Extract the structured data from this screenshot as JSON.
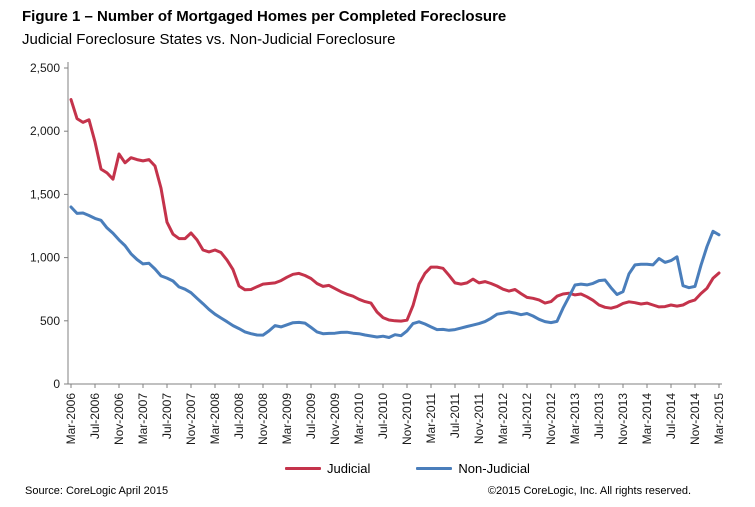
{
  "header": {
    "title": "Figure 1 – Number of Mortgaged Homes per Completed Foreclosure",
    "subtitle": "Judicial Foreclosure States vs. Non-Judicial Foreclosure"
  },
  "footer": {
    "source": "Source: CoreLogic  April 2015",
    "copyright": "©2015 CoreLogic, Inc.  All rights reserved."
  },
  "chart_data": {
    "type": "line",
    "title": "Figure 1 – Number of Mortgaged Homes per Completed Foreclosure",
    "subtitle": "Judicial Foreclosure States vs. Non-Judicial Foreclosure",
    "x_unit": "month",
    "x_start": "Mar-2006",
    "x_end": "Mar-2015",
    "x_tick_labels": [
      "Mar-2006",
      "Jul-2006",
      "Nov-2006",
      "Mar-2007",
      "Jul-2007",
      "Nov-2007",
      "Mar-2008",
      "Jul-2008",
      "Nov-2008",
      "Mar-2009",
      "Jul-2009",
      "Nov-2009",
      "Mar-2010",
      "Jul-2010",
      "Nov-2010",
      "Mar-2011",
      "Jul-2011",
      "Nov-2011",
      "Mar-2012",
      "Jul-2012",
      "Nov-2012",
      "Mar-2013",
      "Jul-2013",
      "Nov-2013",
      "Mar-2014",
      "Jul-2014",
      "Nov-2014",
      "Mar-2015"
    ],
    "ylim": [
      0,
      2500
    ],
    "y_tick_labels": [
      "0",
      "500",
      "1,000",
      "1,500",
      "2,000",
      "2,500"
    ],
    "grid": false,
    "legend_position": "bottom",
    "axis_color": "#808080",
    "text_color": "#1a1a1a",
    "series": [
      {
        "name": "Judicial",
        "color": "#C4334B",
        "values": [
          2250,
          2100,
          2070,
          2090,
          1915,
          1700,
          1670,
          1620,
          1820,
          1750,
          1790,
          1775,
          1765,
          1775,
          1725,
          1550,
          1280,
          1185,
          1150,
          1150,
          1195,
          1140,
          1060,
          1045,
          1060,
          1040,
          980,
          905,
          775,
          745,
          748,
          770,
          790,
          795,
          800,
          818,
          845,
          868,
          875,
          858,
          835,
          795,
          772,
          780,
          755,
          730,
          710,
          695,
          670,
          652,
          640,
          570,
          525,
          506,
          500,
          498,
          505,
          620,
          790,
          876,
          925,
          925,
          915,
          860,
          800,
          790,
          800,
          830,
          800,
          810,
          795,
          775,
          750,
          735,
          748,
          715,
          685,
          678,
          665,
          640,
          652,
          695,
          712,
          718,
          705,
          712,
          690,
          662,
          625,
          607,
          600,
          612,
          638,
          650,
          643,
          633,
          640,
          625,
          610,
          612,
          625,
          616,
          625,
          650,
          665,
          716,
          758,
          836,
          878
        ]
      },
      {
        "name": "Non-Judicial",
        "color": "#4A7EBB",
        "values": [
          1400,
          1350,
          1353,
          1333,
          1310,
          1295,
          1235,
          1192,
          1140,
          1095,
          1030,
          985,
          950,
          955,
          910,
          855,
          838,
          815,
          768,
          750,
          722,
          678,
          635,
          590,
          552,
          522,
          493,
          462,
          438,
          412,
          398,
          388,
          387,
          420,
          462,
          452,
          468,
          485,
          487,
          482,
          448,
          412,
          398,
          400,
          402,
          408,
          410,
          402,
          398,
          388,
          380,
          372,
          378,
          368,
          390,
          382,
          420,
          478,
          492,
          475,
          452,
          430,
          432,
          425,
          430,
          442,
          455,
          466,
          478,
          494,
          520,
          552,
          560,
          570,
          561,
          548,
          558,
          538,
          512,
          494,
          486,
          495,
          600,
          690,
          783,
          790,
          784,
          796,
          818,
          823,
          762,
          708,
          730,
          872,
          942,
          948,
          947,
          942,
          993,
          962,
          976,
          1006,
          778,
          762,
          772,
          940,
          1088,
          1208,
          1180
        ]
      }
    ]
  }
}
